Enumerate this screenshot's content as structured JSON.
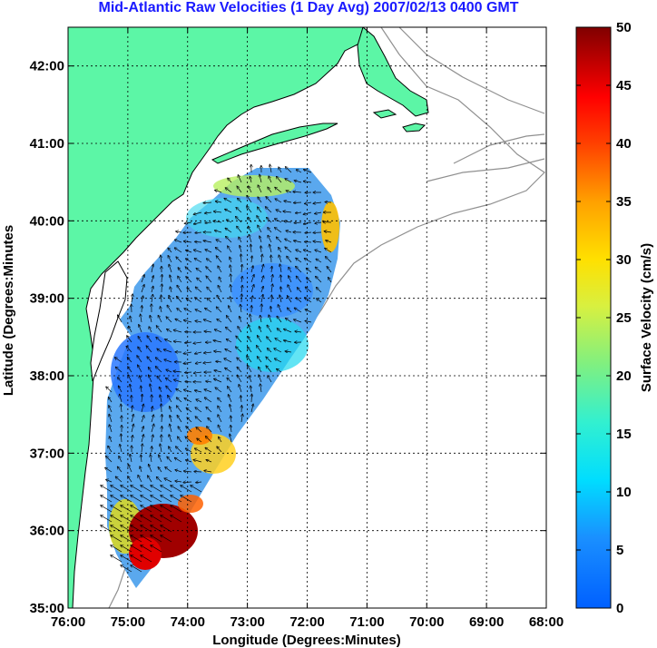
{
  "title": "Mid-Atlantic Raw Velocities (1 Day Avg) 2007/02/13 0400 GMT",
  "chart_data": {
    "type": "heatmap",
    "xlabel": "Longitude (Degrees:Minutes)",
    "ylabel": "Latitude (Degrees:Minutes",
    "x_ticks": [
      "76:00",
      "75:00",
      "74:00",
      "73:00",
      "72:00",
      "71:00",
      "70:00",
      "69:00",
      "68:00"
    ],
    "y_ticks": [
      "42:00",
      "41:00",
      "40:00",
      "39:00",
      "38:00",
      "37:00",
      "36:00",
      "35:00"
    ],
    "xlim": [
      -76,
      -68
    ],
    "ylim": [
      35,
      42.5
    ],
    "grid": true,
    "colorbar": {
      "label": "Surface Velocity (cm/s)",
      "ticks": [
        "0",
        "5",
        "10",
        "15",
        "20",
        "25",
        "30",
        "35",
        "40",
        "45",
        "50"
      ],
      "range": [
        0,
        50
      ]
    },
    "colors": {
      "land": "#5cf6a6",
      "coast": "#000000",
      "bathymetry": "#909090"
    }
  }
}
